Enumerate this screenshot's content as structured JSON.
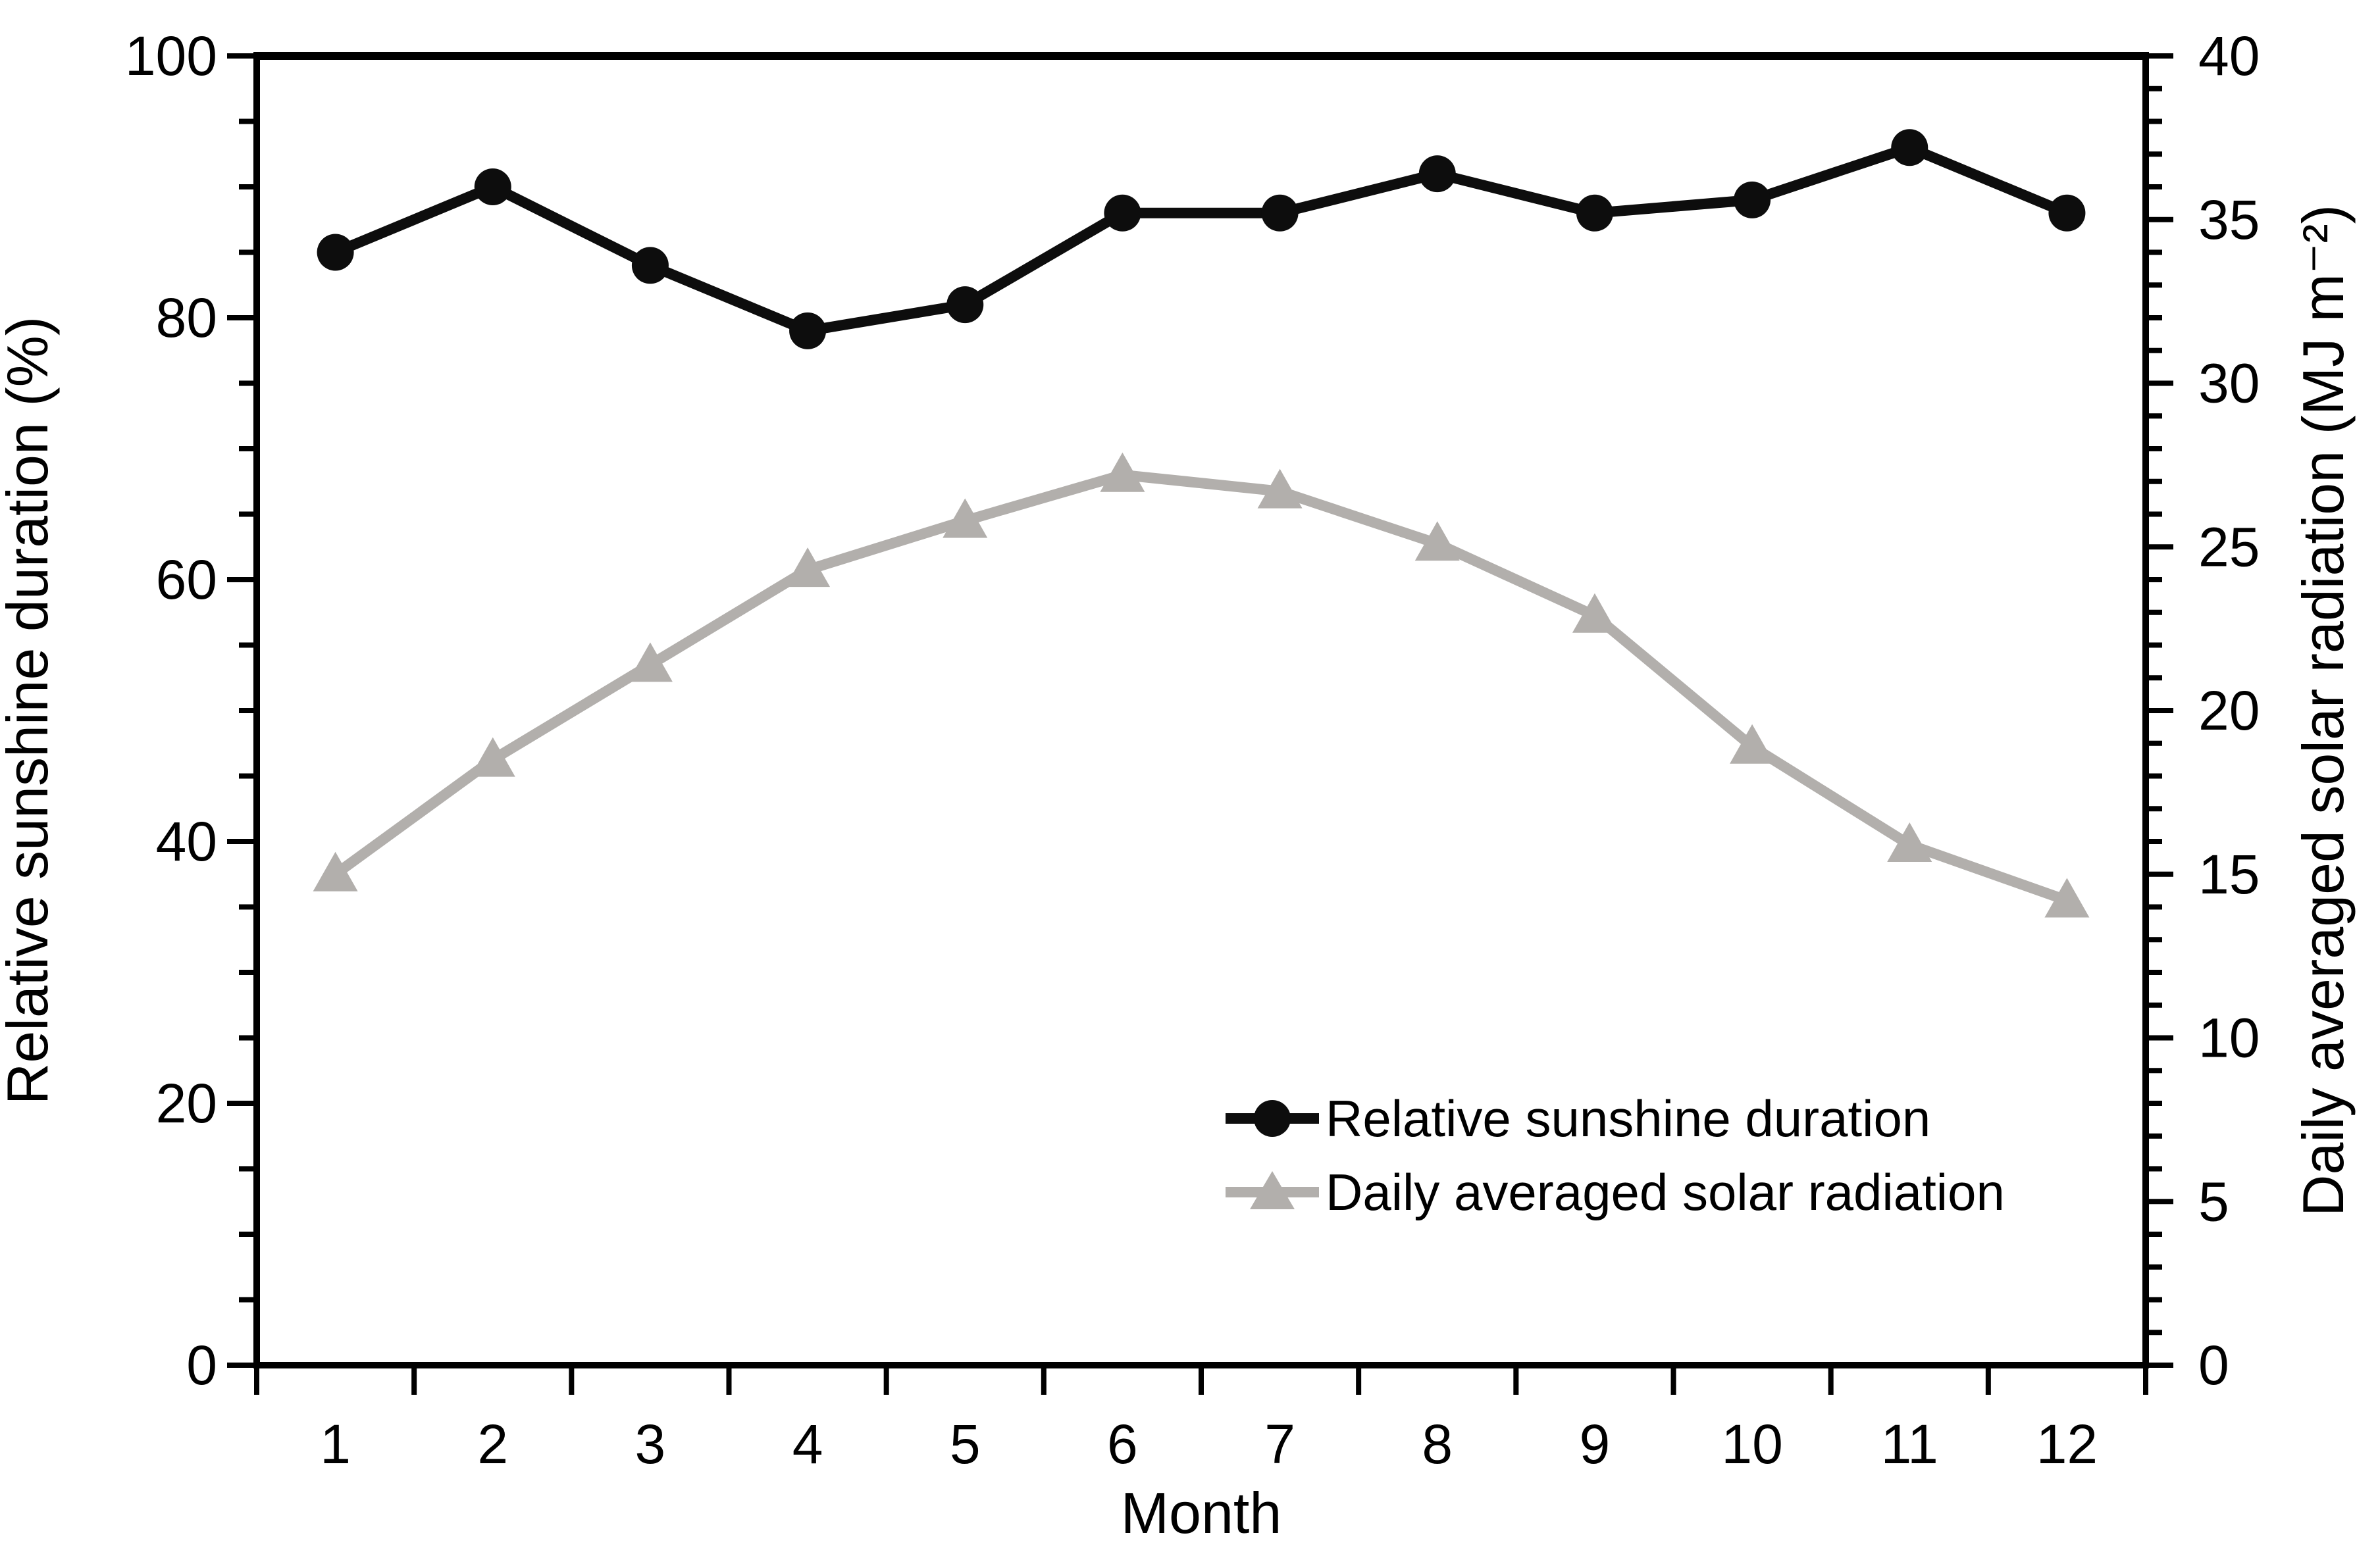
{
  "chart_data": {
    "type": "line",
    "title": "",
    "xlabel": "Month",
    "x_categories": [
      "1",
      "2",
      "3",
      "4",
      "5",
      "6",
      "7",
      "8",
      "9",
      "10",
      "11",
      "12"
    ],
    "left_axis": {
      "label": "Relative sunshine duration (%)",
      "min": 0,
      "max": 100,
      "major_step": 20,
      "minor_step": 5,
      "tick_labels": [
        "0",
        "20",
        "40",
        "60",
        "80",
        "100"
      ]
    },
    "right_axis": {
      "label": "Daily averaged solar radiation (MJ m⁻²)",
      "min": 0,
      "max": 40,
      "major_step": 5,
      "minor_step": 1,
      "tick_labels": [
        "0",
        "5",
        "10",
        "15",
        "20",
        "25",
        "30",
        "35",
        "40"
      ]
    },
    "grid": false,
    "legend_position": "inside-bottom-right",
    "series": [
      {
        "name": "Relative sunshine duration",
        "axis": "left",
        "color": "#0d0d0d",
        "marker": "circle",
        "values": [
          85,
          90,
          84,
          79,
          81,
          88,
          88,
          91,
          88,
          89,
          93,
          88
        ]
      },
      {
        "name": "Daily averaged solar radiation",
        "axis": "right",
        "color": "#b2afac",
        "marker": "triangle",
        "values": [
          15.0,
          18.5,
          21.4,
          24.3,
          25.8,
          27.2,
          26.7,
          25.1,
          22.9,
          18.9,
          15.9,
          14.2
        ]
      }
    ]
  }
}
